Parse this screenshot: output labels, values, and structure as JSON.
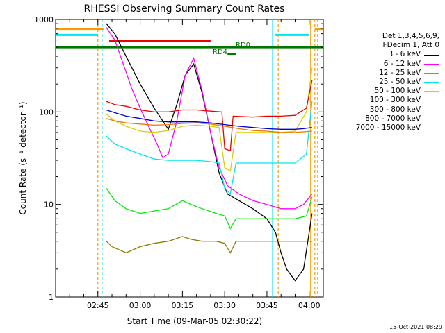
{
  "chart_data": {
    "type": "line",
    "title": "RHESSI Observing Summary Count Rates",
    "xlabel": "Start Time (09-Mar-05 02:30:22)",
    "ylabel": "Count Rate (s⁻¹ detector⁻¹)",
    "y_scale": "log",
    "ylim": [
      1,
      1000
    ],
    "xlim_minutes": [
      0,
      95
    ],
    "x_ticks": [
      {
        "t": 15,
        "label": "02:45"
      },
      {
        "t": 30,
        "label": "03:00"
      },
      {
        "t": 45,
        "label": "03:15"
      },
      {
        "t": 60,
        "label": "03:30"
      },
      {
        "t": 75,
        "label": "03:45"
      },
      {
        "t": 90,
        "label": "04:00"
      }
    ],
    "y_ticks": [
      {
        "v": 1,
        "label": "1"
      },
      {
        "v": 10,
        "label": "10"
      },
      {
        "v": 100,
        "label": "100"
      },
      {
        "v": 1000,
        "label": "1000"
      }
    ],
    "legend_header": [
      "Det 1,3,4,5,6,9,",
      "FDecim 1, Att 0"
    ],
    "series": [
      {
        "name": "3 - 6 keV",
        "color": "#000000",
        "points": [
          [
            18,
            900
          ],
          [
            21,
            700
          ],
          [
            25,
            400
          ],
          [
            30,
            200
          ],
          [
            35,
            110
          ],
          [
            40,
            65
          ],
          [
            43,
            120
          ],
          [
            46,
            250
          ],
          [
            49,
            330
          ],
          [
            52,
            160
          ],
          [
            55,
            60
          ],
          [
            58,
            22
          ],
          [
            61,
            13
          ],
          [
            65,
            11
          ],
          [
            70,
            9
          ],
          [
            75,
            7
          ],
          [
            78,
            5
          ],
          [
            80,
            3
          ],
          [
            82,
            2
          ],
          [
            85,
            1.5
          ],
          [
            88,
            2
          ],
          [
            90,
            5
          ],
          [
            91,
            8
          ]
        ]
      },
      {
        "name": "6 - 12 keV",
        "color": "#ff00ff",
        "points": [
          [
            18,
            820
          ],
          [
            21,
            600
          ],
          [
            24,
            330
          ],
          [
            27,
            180
          ],
          [
            30,
            110
          ],
          [
            33,
            70
          ],
          [
            36,
            45
          ],
          [
            38,
            32
          ],
          [
            40,
            35
          ],
          [
            43,
            80
          ],
          [
            46,
            250
          ],
          [
            49,
            380
          ],
          [
            52,
            170
          ],
          [
            55,
            60
          ],
          [
            58,
            25
          ],
          [
            61,
            16
          ],
          [
            65,
            13
          ],
          [
            70,
            11
          ],
          [
            75,
            10
          ],
          [
            80,
            9
          ],
          [
            85,
            9
          ],
          [
            88,
            10
          ],
          [
            91,
            13
          ]
        ]
      },
      {
        "name": "12 - 25 keV",
        "color": "#00ee00",
        "points": [
          [
            18,
            15
          ],
          [
            21,
            11
          ],
          [
            25,
            9
          ],
          [
            30,
            8
          ],
          [
            35,
            8.5
          ],
          [
            40,
            9
          ],
          [
            45,
            11
          ],
          [
            48,
            10
          ],
          [
            52,
            9
          ],
          [
            57,
            8
          ],
          [
            60,
            7.5
          ],
          [
            62,
            5.5
          ],
          [
            64,
            7
          ],
          [
            65,
            7
          ],
          [
            70,
            7
          ],
          [
            75,
            7
          ],
          [
            80,
            7
          ],
          [
            85,
            7
          ],
          [
            89,
            7.5
          ],
          [
            91,
            12
          ]
        ]
      },
      {
        "name": "25 - 50 keV",
        "color": "#00e5ee",
        "points": [
          [
            18,
            55
          ],
          [
            21,
            45
          ],
          [
            25,
            40
          ],
          [
            30,
            35
          ],
          [
            35,
            31
          ],
          [
            40,
            30
          ],
          [
            45,
            30
          ],
          [
            50,
            30
          ],
          [
            55,
            29
          ],
          [
            58,
            28
          ],
          [
            60,
            15
          ],
          [
            62,
            13
          ],
          [
            64,
            28
          ],
          [
            70,
            28
          ],
          [
            75,
            28
          ],
          [
            80,
            28
          ],
          [
            85,
            28
          ],
          [
            89,
            35
          ],
          [
            91,
            130
          ]
        ]
      },
      {
        "name": "50 - 100 keV",
        "color": "#ddcc00",
        "points": [
          [
            18,
            95
          ],
          [
            21,
            80
          ],
          [
            25,
            70
          ],
          [
            30,
            62
          ],
          [
            35,
            60
          ],
          [
            40,
            63
          ],
          [
            45,
            70
          ],
          [
            50,
            72
          ],
          [
            55,
            70
          ],
          [
            58,
            68
          ],
          [
            60,
            25
          ],
          [
            62,
            23
          ],
          [
            64,
            60
          ],
          [
            70,
            60
          ],
          [
            75,
            60
          ],
          [
            80,
            60
          ],
          [
            85,
            62
          ],
          [
            89,
            100
          ],
          [
            91,
            300
          ]
        ]
      },
      {
        "name": "100 - 300 keV",
        "color": "#ee0000",
        "points": [
          [
            18,
            130
          ],
          [
            21,
            120
          ],
          [
            25,
            115
          ],
          [
            30,
            105
          ],
          [
            35,
            100
          ],
          [
            40,
            100
          ],
          [
            45,
            105
          ],
          [
            50,
            105
          ],
          [
            55,
            102
          ],
          [
            59,
            100
          ],
          [
            60,
            40
          ],
          [
            62,
            38
          ],
          [
            63,
            90
          ],
          [
            70,
            88
          ],
          [
            75,
            90
          ],
          [
            80,
            90
          ],
          [
            85,
            92
          ],
          [
            89,
            110
          ],
          [
            91,
            220
          ]
        ]
      },
      {
        "name": "300 - 800 keV",
        "color": "#0000cc",
        "points": [
          [
            18,
            105
          ],
          [
            21,
            98
          ],
          [
            25,
            90
          ],
          [
            30,
            85
          ],
          [
            35,
            80
          ],
          [
            40,
            78
          ],
          [
            45,
            78
          ],
          [
            50,
            78
          ],
          [
            55,
            76
          ],
          [
            60,
            73
          ],
          [
            65,
            70
          ],
          [
            70,
            68
          ],
          [
            75,
            66
          ],
          [
            80,
            65
          ],
          [
            85,
            65
          ],
          [
            88,
            66
          ],
          [
            91,
            68
          ]
        ]
      },
      {
        "name": "800 - 7000 keV",
        "color": "#ee7700",
        "points": [
          [
            18,
            85
          ],
          [
            21,
            80
          ],
          [
            25,
            76
          ],
          [
            30,
            74
          ],
          [
            35,
            72
          ],
          [
            40,
            73
          ],
          [
            45,
            75
          ],
          [
            50,
            76
          ],
          [
            55,
            74
          ],
          [
            60,
            70
          ],
          [
            65,
            66
          ],
          [
            70,
            63
          ],
          [
            75,
            62
          ],
          [
            80,
            60
          ],
          [
            85,
            60
          ],
          [
            88,
            61
          ],
          [
            91,
            62
          ]
        ]
      },
      {
        "name": "7000 - 15000 keV",
        "color": "#8b7d00",
        "points": [
          [
            18,
            4
          ],
          [
            20,
            3.5
          ],
          [
            25,
            3
          ],
          [
            30,
            3.5
          ],
          [
            35,
            3.8
          ],
          [
            40,
            4
          ],
          [
            45,
            4.5
          ],
          [
            48,
            4.2
          ],
          [
            52,
            4
          ],
          [
            57,
            4
          ],
          [
            60,
            3.8
          ],
          [
            62,
            3
          ],
          [
            64,
            4
          ],
          [
            70,
            4
          ],
          [
            75,
            4
          ],
          [
            80,
            4
          ],
          [
            85,
            4
          ],
          [
            88,
            4
          ],
          [
            91,
            4
          ]
        ]
      }
    ],
    "annotations": [
      {
        "label": "RD0",
        "color": "#007700"
      },
      {
        "label": "RD4",
        "color": "#007700"
      }
    ],
    "flag_bars": [
      {
        "color": "#ff9900",
        "t0": 0,
        "t1": 17,
        "v": 790
      },
      {
        "color": "#00e5ee",
        "t0": 0,
        "t1": 15,
        "v": 680
      },
      {
        "color": "#00e5ee",
        "t0": 78,
        "t1": 90,
        "v": 680
      },
      {
        "color": "#ff9900",
        "t0": 92,
        "t1": 95,
        "v": 790
      },
      {
        "color": "#ee0000",
        "t0": 19,
        "t1": 55,
        "v": 580
      },
      {
        "color": "#007700",
        "t0": 0,
        "t1": 95,
        "v": 500
      },
      {
        "color": "#007700",
        "t0": 61,
        "t1": 64,
        "v": 425
      }
    ],
    "vlines": [
      {
        "t": 15,
        "color": "#ff9900",
        "dashed": true
      },
      {
        "t": 16.5,
        "color": "#00e5ee",
        "dashed": true
      },
      {
        "t": 77,
        "color": "#00e5ee",
        "dashed": false
      },
      {
        "t": 79,
        "color": "#ff9900",
        "dashed": true
      },
      {
        "t": 90.5,
        "color": "#ff9900",
        "dashed": false
      },
      {
        "t": 92,
        "color": "#ff9900",
        "dashed": true
      },
      {
        "t": 93,
        "color": "#00e5ee",
        "dashed": true
      }
    ]
  },
  "footer": {
    "timestamp": "15-Oct-2021 08:29"
  }
}
